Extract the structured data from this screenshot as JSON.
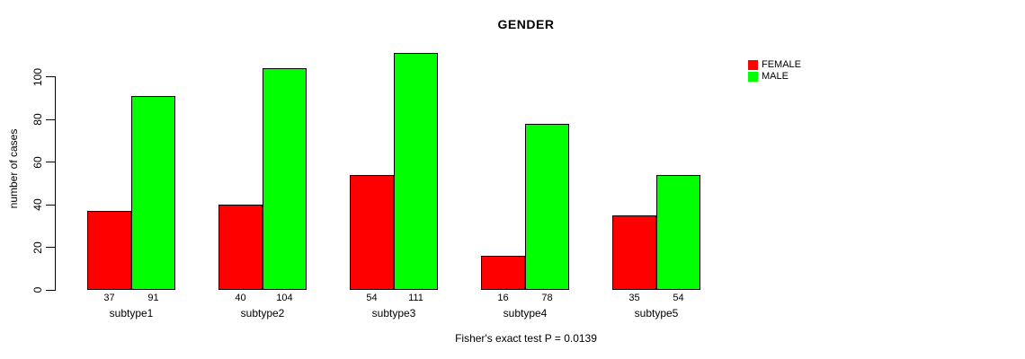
{
  "title": "GENDER",
  "y_axis_label": "number of cases",
  "footer_annotation": "Fisher's exact test P = 0.0139",
  "chart_data": {
    "type": "bar",
    "title": "GENDER",
    "xlabel": "",
    "ylabel": "number of cases",
    "categories": [
      "subtype1",
      "subtype2",
      "subtype3",
      "subtype4",
      "subtype5"
    ],
    "series": [
      {
        "name": "FEMALE",
        "color": "#FF0000",
        "values": [
          37,
          40,
          54,
          16,
          35
        ]
      },
      {
        "name": "MALE",
        "color": "#00FF00",
        "values": [
          91,
          104,
          111,
          78,
          54
        ]
      }
    ],
    "yticks": [
      0,
      20,
      40,
      60,
      80,
      100
    ],
    "ylim": [
      0,
      115
    ],
    "bar_value_labels_shown": true,
    "grid": false,
    "legend_position": "top-right-outside",
    "annotation": "Fisher's exact test P = 0.0139"
  }
}
